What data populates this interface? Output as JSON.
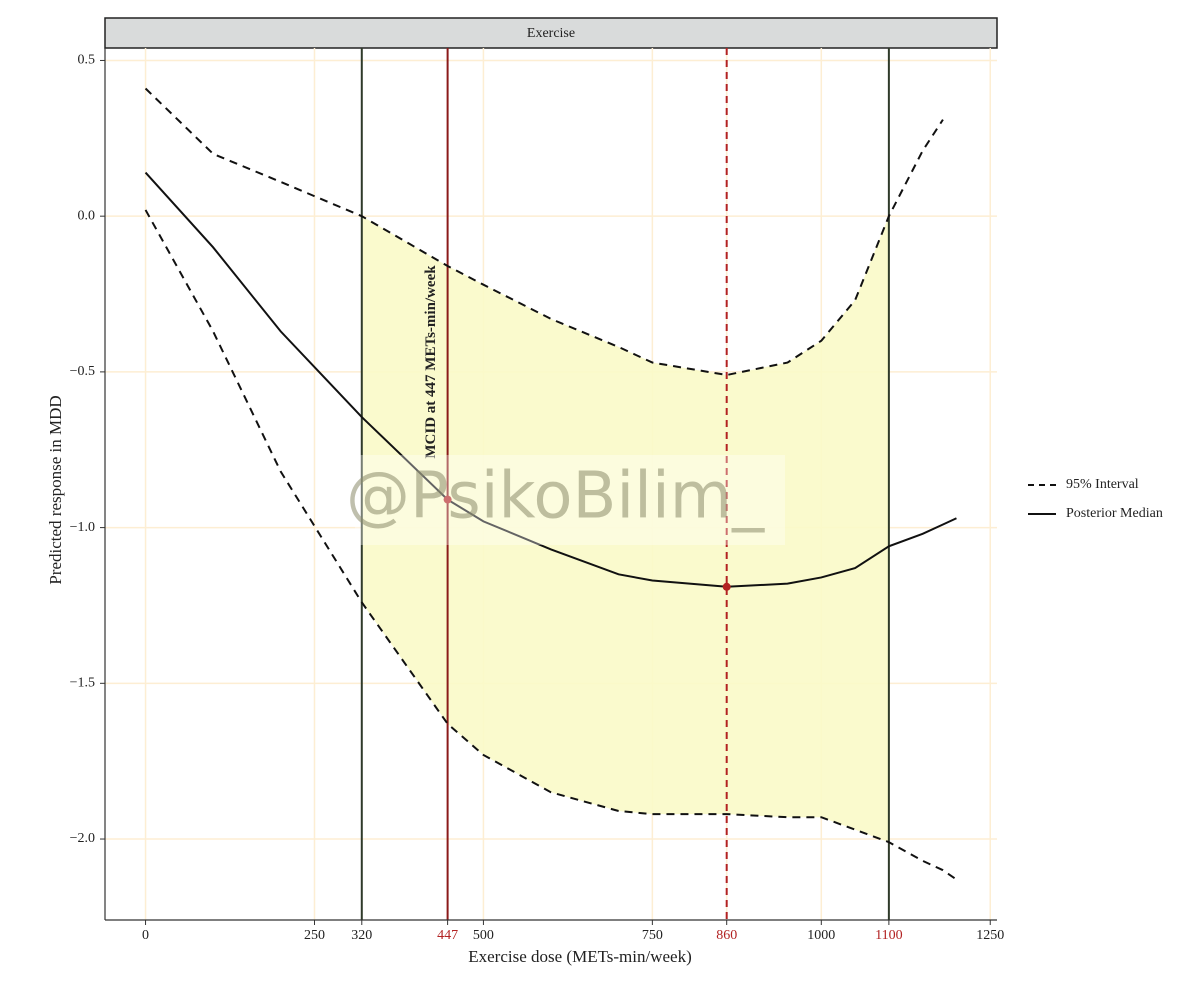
{
  "chart_data": {
    "type": "line",
    "strip": "Exercise",
    "x_label": "Exercise dose (METs-min/week)",
    "y_label": "Predicted response in MDD",
    "x": [
      0,
      100,
      200,
      320,
      447,
      500,
      600,
      700,
      750,
      860,
      950,
      1000,
      1050,
      1100,
      1150,
      1180,
      1200
    ],
    "series": [
      {
        "name": "95% Interval",
        "color": "#111111",
        "style": "dashed",
        "values": [
          0.41,
          0.2,
          0.11,
          0.0,
          -0.16,
          -0.22,
          -0.33,
          -0.42,
          -0.47,
          -0.51,
          -0.47,
          -0.4,
          -0.27,
          0.0,
          0.21,
          0.31,
          null
        ],
        "lower": [
          0.02,
          -0.37,
          -0.82,
          -1.24,
          -1.63,
          -1.73,
          -1.85,
          -1.91,
          -1.92,
          -1.92,
          -1.93,
          -1.93,
          -1.97,
          -2.01,
          -2.07,
          -2.1,
          -2.13
        ]
      },
      {
        "name": "Posterior Median",
        "color": "#111111",
        "style": "solid",
        "values": [
          0.14,
          -0.1,
          -0.37,
          -0.645,
          -0.91,
          -0.98,
          -1.07,
          -1.15,
          -1.17,
          -1.19,
          -1.18,
          -1.16,
          -1.13,
          -1.06,
          -1.02,
          -0.99,
          -0.97
        ]
      }
    ],
    "band": [
      320,
      1100
    ],
    "band_color": "#fafac8",
    "vlines": [
      {
        "x": 320,
        "color": "#2f3a2a",
        "style": "solid"
      },
      {
        "x": 447,
        "color": "#8b1a1a",
        "style": "solid"
      },
      {
        "x": 860,
        "color": "#b22222",
        "style": "dashed"
      },
      {
        "x": 1100,
        "color": "#2f3a2a",
        "style": "solid"
      }
    ],
    "points": [
      {
        "x": 447,
        "y": -0.91
      },
      {
        "x": 860,
        "y": -1.19
      }
    ],
    "point_color": "#b22222",
    "annotation": "MCID at 447 METs-min/week",
    "watermark": "@PsikoBilim_",
    "xlim": [
      -60,
      1260
    ],
    "ylim": [
      -2.26,
      0.54
    ],
    "xticks": [
      0,
      250,
      320,
      447,
      500,
      750,
      860,
      1000,
      1100,
      1250
    ],
    "highlighted_xticks": [
      447,
      860,
      1100
    ],
    "highlight_color": "#b22222",
    "yticks": [
      0.5,
      {
        "value": 0,
        "label": "0.0"
      },
      {
        "value": -0.5,
        "label": "−0.5"
      },
      {
        "value": -1,
        "label": "−1.0"
      },
      {
        "value": -1.5,
        "label": "−1.5"
      },
      {
        "value": -2,
        "label": "−2.0"
      }
    ],
    "grid": true,
    "grid_color": "#fdeed3",
    "legend": "right"
  }
}
